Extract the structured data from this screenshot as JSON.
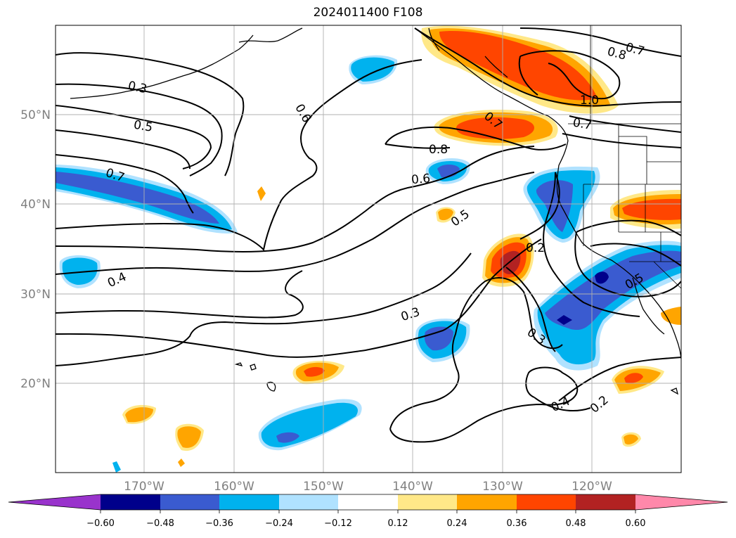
{
  "title": "2024011400 F108",
  "map": {
    "lat_labels": [
      "50°N",
      "40°N",
      "30°N",
      "20°N"
    ],
    "lon_labels": [
      "170°W",
      "160°W",
      "150°W",
      "140°W",
      "130°W",
      "120°W"
    ],
    "grid": true
  },
  "contour_labels": [
    "0.3",
    "0.5",
    "0.6",
    "0.7",
    "0.8",
    "0.7",
    "1.0",
    "0.7",
    "0.6",
    "0.8",
    "0.7",
    "0.5",
    "0.4",
    "0.3",
    "0.2",
    "0.5",
    "0.3",
    "0.4",
    "0.2"
  ],
  "colorbar": {
    "ticks": [
      "−0.60",
      "−0.48",
      "−0.36",
      "−0.24",
      "−0.12",
      "0.12",
      "0.24",
      "0.36",
      "0.48",
      "0.60"
    ],
    "colors": {
      "under": "#9933cc",
      "neg_060": "#00008b",
      "neg_048": "#3a5bd0",
      "neg_036": "#00b2ee",
      "neg_024": "#b0e2ff",
      "neutral": "#ffffff",
      "pos_012": "#ffe888",
      "pos_024": "#ffa500",
      "pos_036": "#ff4500",
      "pos_048": "#b22222",
      "over": "#ff88aa"
    }
  }
}
